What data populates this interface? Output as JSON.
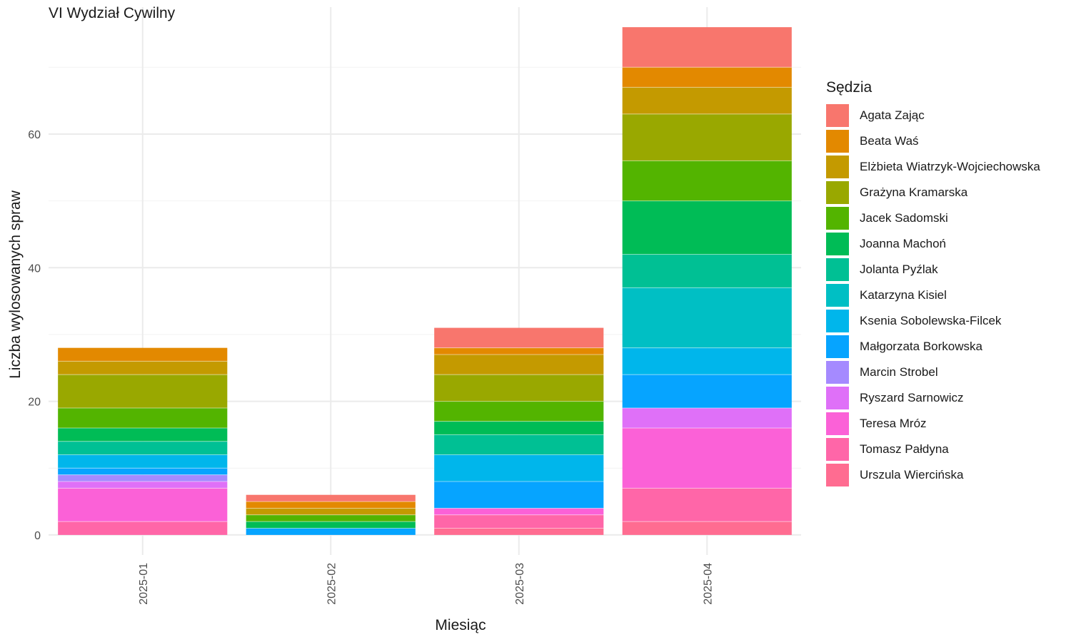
{
  "chart_data": {
    "type": "bar",
    "stacked": true,
    "title": "VI Wydział Cywilny",
    "xlabel": "Miesiąc",
    "ylabel": "Liczba wylosowanych spraw",
    "legend_title": "Sędzia",
    "legend_position": "right",
    "grid": true,
    "ylim": [
      -3,
      79
    ],
    "yticks": [
      0,
      20,
      40,
      60
    ],
    "categories": [
      "2025-01",
      "2025-02",
      "2025-03",
      "2025-04"
    ],
    "series": [
      {
        "name": "Agata Zając",
        "color": "#F8766D",
        "values": [
          0,
          1,
          3,
          6
        ]
      },
      {
        "name": "Beata Waś",
        "color": "#E38900",
        "values": [
          2,
          1,
          1,
          3
        ]
      },
      {
        "name": "Elżbieta Wiatrzyk-Wojciechowska",
        "color": "#C49A00",
        "values": [
          2,
          1,
          3,
          4
        ]
      },
      {
        "name": "Grażyna Kramarska",
        "color": "#99A800",
        "values": [
          5,
          0,
          4,
          7
        ]
      },
      {
        "name": "Jacek Sadomski",
        "color": "#53B400",
        "values": [
          3,
          1,
          3,
          6
        ]
      },
      {
        "name": "Joanna Machoń",
        "color": "#00BC56",
        "values": [
          2,
          1,
          2,
          8
        ]
      },
      {
        "name": "Jolanta Pyźlak",
        "color": "#00C094",
        "values": [
          2,
          0,
          3,
          5
        ]
      },
      {
        "name": "Katarzyna Kisiel",
        "color": "#00BFC4",
        "values": [
          0,
          0,
          0,
          9
        ]
      },
      {
        "name": "Ksenia Sobolewska-Filcek",
        "color": "#00B6EB",
        "values": [
          2,
          0,
          4,
          4
        ]
      },
      {
        "name": "Małgorzata Borkowska",
        "color": "#06A4FF",
        "values": [
          1,
          1,
          4,
          5
        ]
      },
      {
        "name": "Marcin Strobel",
        "color": "#A58AFF",
        "values": [
          1,
          0,
          0,
          0
        ]
      },
      {
        "name": "Ryszard Sarnowicz",
        "color": "#DF70F8",
        "values": [
          1,
          0,
          0,
          3
        ]
      },
      {
        "name": "Teresa Mróz",
        "color": "#FB61D7",
        "values": [
          5,
          0,
          1,
          9
        ]
      },
      {
        "name": "Tomasz Pałdyna",
        "color": "#FF66A8",
        "values": [
          2,
          0,
          2,
          5
        ]
      },
      {
        "name": "Urszula Wiercińska",
        "color": "#FF6C91",
        "values": [
          0,
          0,
          1,
          2
        ]
      }
    ]
  }
}
